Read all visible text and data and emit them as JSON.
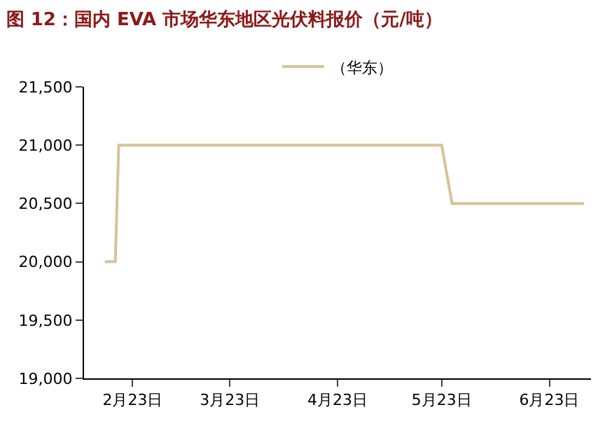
{
  "chart_data": {
    "type": "line",
    "title": "图 12：国内 EVA 市场华东地区光伏料报价（元/吨）",
    "x": [
      "--02-15",
      "--02-18",
      "--02-19",
      "--05-23",
      "--05-26",
      "--07-03"
    ],
    "series": [
      {
        "name": "（华东）",
        "color": "#d6c29c",
        "values": [
          20000,
          20000,
          21000,
          21000,
          20500,
          20500
        ]
      }
    ],
    "xlim": [
      "--02-09",
      "--07-05"
    ],
    "xticks": [
      {
        "value": "--02-23",
        "label": "2月23日"
      },
      {
        "value": "--03-23",
        "label": "3月23日"
      },
      {
        "value": "--04-23",
        "label": "4月23日"
      },
      {
        "value": "--05-23",
        "label": "5月23日"
      },
      {
        "value": "--06-23",
        "label": "6月23日"
      }
    ],
    "ylim": [
      19000,
      21500
    ],
    "yticks": [
      {
        "value": 19000,
        "label": "19,000"
      },
      {
        "value": 19500,
        "label": "19,500"
      },
      {
        "value": 20000,
        "label": "20,000"
      },
      {
        "value": 20500,
        "label": "20,500"
      },
      {
        "value": 21000,
        "label": "21,000"
      },
      {
        "value": 21500,
        "label": "21,500"
      }
    ],
    "legend": "top",
    "marker": "none",
    "line_style": "solid"
  }
}
